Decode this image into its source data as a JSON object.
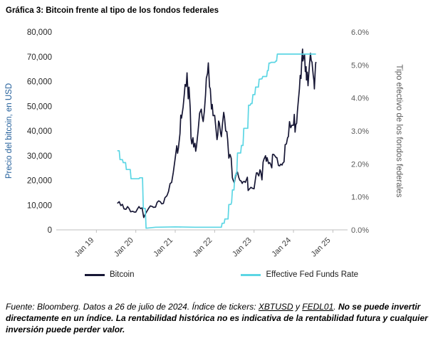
{
  "title": "Gráfica 3: Bitcoin frente al tipo de los fondos federales",
  "legend": {
    "bitcoin_label": "Bitcoin",
    "fed_funds_label": "Effective Fed Funds Rate"
  },
  "footer": {
    "source_prefix": "Fuente: Bloomberg. Datos a 26 de julio de 2024. Índice de tickers: ",
    "ticker_1": "XBTUSD",
    "connector": " y ",
    "ticker_2": "FEDL01",
    "period": ". ",
    "disclaimer_bold": "No se puede invertir directamente en un índice. La rentabilidad histórica no es indicativa de la rentabilidad futura y cualquier inversión puede perder valor."
  },
  "chart_data": {
    "type": "line",
    "title": "Gráfica 3: Bitcoin frente al tipo de los fondos federales",
    "grid": false,
    "legend_position": "bottom",
    "x_axis": {
      "domain": [
        2018.0,
        2025.3
      ],
      "ticks": [
        {
          "v": 2019,
          "label": "Jan 19"
        },
        {
          "v": 2020,
          "label": "Jan 20"
        },
        {
          "v": 2021,
          "label": "Jan 21"
        },
        {
          "v": 2022,
          "label": "Jan 22"
        },
        {
          "v": 2023,
          "label": "Jan 23"
        },
        {
          "v": 2024,
          "label": "Jan 24"
        },
        {
          "v": 2025,
          "label": "Jan 25"
        }
      ]
    },
    "left_axis": {
      "label": "Precio del bitcoin, en USD",
      "color": "#1F5C99",
      "range": [
        0,
        80000
      ],
      "ticks": [
        0,
        10000,
        20000,
        30000,
        40000,
        50000,
        60000,
        70000,
        80000
      ],
      "tick_labels": [
        "0",
        "10,000",
        "20,000",
        "30,000",
        "40,000",
        "50,000",
        "60,000",
        "70,000",
        "80,000"
      ]
    },
    "right_axis": {
      "label": "Tipo efectivo de los fondos federales",
      "color": "#595959",
      "range": [
        0,
        6
      ],
      "ticks": [
        0,
        1,
        2,
        3,
        4,
        5,
        6
      ],
      "tick_labels": [
        "0.0%",
        "1.0%",
        "2.0%",
        "3.0%",
        "4.0%",
        "5.0%",
        "6.0%"
      ]
    },
    "series": [
      {
        "name": "Bitcoin",
        "axis": "left",
        "color": "#171735",
        "width": 1.7,
        "points": [
          [
            2019.53,
            10700
          ],
          [
            2019.58,
            11400
          ],
          [
            2019.62,
            9800
          ],
          [
            2019.66,
            10300
          ],
          [
            2019.7,
            8500
          ],
          [
            2019.75,
            8300
          ],
          [
            2019.79,
            9400
          ],
          [
            2019.83,
            8600
          ],
          [
            2019.87,
            7300
          ],
          [
            2019.92,
            7500
          ],
          [
            2019.96,
            7200
          ],
          [
            2020.0,
            7200
          ],
          [
            2020.04,
            8400
          ],
          [
            2020.08,
            9400
          ],
          [
            2020.12,
            8600
          ],
          [
            2020.16,
            8900
          ],
          [
            2020.2,
            5000
          ],
          [
            2020.24,
            6400
          ],
          [
            2020.28,
            7500
          ],
          [
            2020.33,
            8800
          ],
          [
            2020.37,
            9700
          ],
          [
            2020.41,
            9500
          ],
          [
            2020.45,
            9100
          ],
          [
            2020.5,
            9200
          ],
          [
            2020.54,
            11100
          ],
          [
            2020.58,
            11700
          ],
          [
            2020.62,
            11400
          ],
          [
            2020.66,
            10500
          ],
          [
            2020.7,
            10700
          ],
          [
            2020.74,
            13000
          ],
          [
            2020.79,
            13800
          ],
          [
            2020.83,
            15500
          ],
          [
            2020.87,
            18700
          ],
          [
            2020.91,
            19200
          ],
          [
            2020.95,
            23200
          ],
          [
            2021.0,
            29000
          ],
          [
            2021.04,
            34000
          ],
          [
            2021.06,
            31000
          ],
          [
            2021.08,
            33100
          ],
          [
            2021.12,
            38900
          ],
          [
            2021.14,
            46400
          ],
          [
            2021.16,
            45200
          ],
          [
            2021.2,
            49600
          ],
          [
            2021.23,
            54900
          ],
          [
            2021.25,
            58800
          ],
          [
            2021.28,
            58000
          ],
          [
            2021.3,
            63500
          ],
          [
            2021.33,
            53000
          ],
          [
            2021.35,
            57700
          ],
          [
            2021.38,
            49000
          ],
          [
            2021.4,
            37000
          ],
          [
            2021.42,
            34800
          ],
          [
            2021.45,
            37300
          ],
          [
            2021.47,
            33500
          ],
          [
            2021.5,
            35000
          ],
          [
            2021.52,
            31800
          ],
          [
            2021.54,
            33800
          ],
          [
            2021.58,
            39900
          ],
          [
            2021.62,
            47200
          ],
          [
            2021.66,
            48800
          ],
          [
            2021.68,
            46000
          ],
          [
            2021.71,
            43800
          ],
          [
            2021.74,
            48200
          ],
          [
            2021.77,
            54700
          ],
          [
            2021.79,
            61300
          ],
          [
            2021.82,
            63300
          ],
          [
            2021.84,
            67500
          ],
          [
            2021.87,
            57800
          ],
          [
            2021.89,
            57000
          ],
          [
            2021.92,
            48900
          ],
          [
            2021.94,
            50700
          ],
          [
            2021.96,
            46200
          ],
          [
            2022.0,
            46300
          ],
          [
            2022.03,
            41500
          ],
          [
            2022.06,
            36500
          ],
          [
            2022.08,
            38500
          ],
          [
            2022.1,
            44000
          ],
          [
            2022.12,
            43200
          ],
          [
            2022.15,
            39100
          ],
          [
            2022.17,
            37700
          ],
          [
            2022.2,
            42900
          ],
          [
            2022.23,
            47500
          ],
          [
            2022.25,
            45500
          ],
          [
            2022.28,
            40000
          ],
          [
            2022.31,
            39700
          ],
          [
            2022.33,
            36600
          ],
          [
            2022.36,
            29000
          ],
          [
            2022.39,
            30500
          ],
          [
            2022.42,
            29000
          ],
          [
            2022.45,
            21000
          ],
          [
            2022.47,
            20100
          ],
          [
            2022.5,
            19000
          ],
          [
            2022.53,
            21600
          ],
          [
            2022.56,
            23300
          ],
          [
            2022.58,
            23300
          ],
          [
            2022.61,
            21300
          ],
          [
            2022.64,
            20000
          ],
          [
            2022.67,
            19800
          ],
          [
            2022.7,
            18800
          ],
          [
            2022.72,
            19400
          ],
          [
            2022.75,
            19600
          ],
          [
            2022.78,
            19200
          ],
          [
            2022.81,
            20500
          ],
          [
            2022.83,
            21300
          ],
          [
            2022.85,
            15900
          ],
          [
            2022.88,
            16500
          ],
          [
            2022.92,
            17200
          ],
          [
            2022.96,
            16800
          ],
          [
            2023.0,
            16600
          ],
          [
            2023.04,
            21100
          ],
          [
            2023.06,
            23000
          ],
          [
            2023.08,
            23100
          ],
          [
            2023.12,
            21800
          ],
          [
            2023.15,
            24300
          ],
          [
            2023.17,
            23500
          ],
          [
            2023.2,
            20200
          ],
          [
            2023.23,
            27400
          ],
          [
            2023.25,
            28500
          ],
          [
            2023.29,
            30000
          ],
          [
            2023.31,
            27700
          ],
          [
            2023.33,
            29200
          ],
          [
            2023.37,
            26800
          ],
          [
            2023.4,
            27200
          ],
          [
            2023.42,
            26500
          ],
          [
            2023.45,
            25100
          ],
          [
            2023.47,
            30500
          ],
          [
            2023.5,
            30500
          ],
          [
            2023.53,
            29900
          ],
          [
            2023.56,
            29200
          ],
          [
            2023.58,
            29200
          ],
          [
            2023.62,
            26000
          ],
          [
            2023.65,
            25900
          ],
          [
            2023.68,
            26600
          ],
          [
            2023.71,
            26200
          ],
          [
            2023.73,
            27000
          ],
          [
            2023.76,
            27500
          ],
          [
            2023.79,
            34500
          ],
          [
            2023.82,
            34700
          ],
          [
            2023.85,
            37300
          ],
          [
            2023.87,
            37700
          ],
          [
            2023.9,
            43800
          ],
          [
            2023.93,
            41300
          ],
          [
            2023.96,
            42300
          ],
          [
            2024.0,
            42300
          ],
          [
            2024.02,
            46700
          ],
          [
            2024.04,
            39500
          ],
          [
            2024.06,
            42600
          ],
          [
            2024.08,
            43100
          ],
          [
            2024.1,
            48000
          ],
          [
            2024.12,
            51600
          ],
          [
            2024.15,
            57000
          ],
          [
            2024.17,
            62500
          ],
          [
            2024.19,
            61200
          ],
          [
            2024.21,
            68500
          ],
          [
            2024.23,
            73100
          ],
          [
            2024.24,
            68300
          ],
          [
            2024.26,
            69600
          ],
          [
            2024.28,
            71000
          ],
          [
            2024.3,
            64000
          ],
          [
            2024.32,
            66000
          ],
          [
            2024.33,
            60600
          ],
          [
            2024.35,
            63800
          ],
          [
            2024.37,
            58300
          ],
          [
            2024.39,
            63200
          ],
          [
            2024.41,
            67500
          ],
          [
            2024.43,
            71400
          ],
          [
            2024.45,
            68500
          ],
          [
            2024.47,
            67800
          ],
          [
            2024.49,
            64300
          ],
          [
            2024.5,
            62700
          ],
          [
            2024.52,
            60300
          ],
          [
            2024.53,
            57000
          ],
          [
            2024.55,
            63800
          ],
          [
            2024.56,
            66800
          ],
          [
            2024.57,
            67900
          ]
        ]
      },
      {
        "name": "Effective Fed Funds Rate",
        "axis": "right",
        "color": "#5CD6E4",
        "width": 1.7,
        "points": [
          [
            2019.53,
            2.4
          ],
          [
            2019.58,
            2.4
          ],
          [
            2019.6,
            2.13
          ],
          [
            2019.66,
            2.13
          ],
          [
            2019.68,
            2.04
          ],
          [
            2019.74,
            2.04
          ],
          [
            2019.76,
            1.83
          ],
          [
            2019.86,
            1.83
          ],
          [
            2019.88,
            1.55
          ],
          [
            2020.08,
            1.55
          ],
          [
            2020.1,
            1.58
          ],
          [
            2020.17,
            1.58
          ],
          [
            2020.19,
            0.65
          ],
          [
            2020.24,
            0.65
          ],
          [
            2020.26,
            0.05
          ],
          [
            2020.5,
            0.08
          ],
          [
            2021.0,
            0.09
          ],
          [
            2021.5,
            0.08
          ],
          [
            2022.0,
            0.08
          ],
          [
            2022.17,
            0.08
          ],
          [
            2022.19,
            0.2
          ],
          [
            2022.24,
            0.2
          ],
          [
            2022.26,
            0.33
          ],
          [
            2022.34,
            0.33
          ],
          [
            2022.36,
            0.77
          ],
          [
            2022.41,
            0.77
          ],
          [
            2022.43,
            0.83
          ],
          [
            2022.45,
            1.21
          ],
          [
            2022.49,
            1.21
          ],
          [
            2022.51,
            1.58
          ],
          [
            2022.53,
            1.68
          ],
          [
            2022.56,
            1.68
          ],
          [
            2022.58,
            2.33
          ],
          [
            2022.66,
            2.33
          ],
          [
            2022.68,
            2.56
          ],
          [
            2022.72,
            2.56
          ],
          [
            2022.74,
            3.08
          ],
          [
            2022.84,
            3.08
          ],
          [
            2022.86,
            3.78
          ],
          [
            2022.9,
            3.78
          ],
          [
            2022.92,
            3.83
          ],
          [
            2022.95,
            3.83
          ],
          [
            2022.97,
            4.1
          ],
          [
            2023.02,
            4.1
          ],
          [
            2023.04,
            4.33
          ],
          [
            2023.11,
            4.33
          ],
          [
            2023.13,
            4.57
          ],
          [
            2023.2,
            4.58
          ],
          [
            2023.22,
            4.65
          ],
          [
            2023.32,
            4.65
          ],
          [
            2023.34,
            4.83
          ],
          [
            2023.36,
            4.83
          ],
          [
            2023.38,
            5.06
          ],
          [
            2023.41,
            5.06
          ],
          [
            2023.43,
            5.08
          ],
          [
            2023.53,
            5.08
          ],
          [
            2023.55,
            5.12
          ],
          [
            2023.57,
            5.12
          ],
          [
            2023.59,
            5.33
          ],
          [
            2024.57,
            5.33
          ]
        ]
      }
    ]
  }
}
